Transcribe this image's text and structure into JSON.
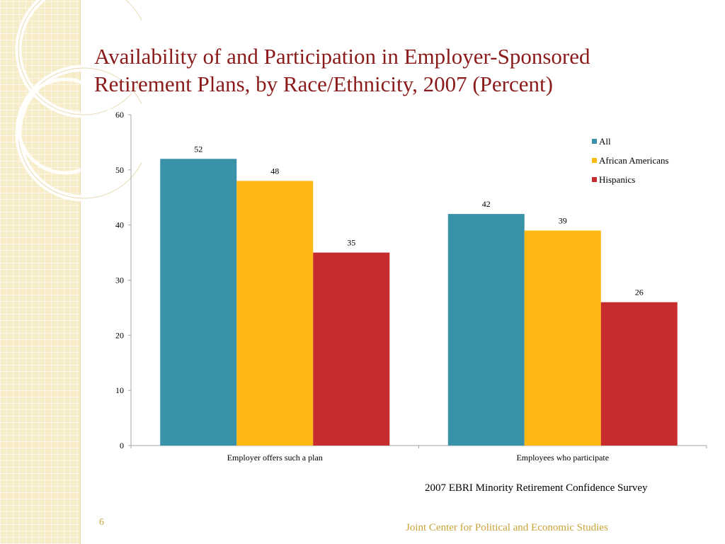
{
  "slide": {
    "title_line1": "Availability of and Participation in Employer-Sponsored",
    "title_line2": "Retirement Plans, by Race/Ethnicity, 2007 (Percent)",
    "source_note": "2007 EBRI Minority Retirement Confidence Survey",
    "page_number": "6",
    "footer": "Joint Center for Political and Economic Studies"
  },
  "colors": {
    "title": "#8b1a1a",
    "footer": "#c9a43a",
    "all": "#3a92a8",
    "african_americans": "#fdb813",
    "hispanics": "#c62b2e"
  },
  "chart_data": {
    "type": "bar",
    "categories": [
      "Employer offers such a plan",
      "Employees who participate"
    ],
    "series": [
      {
        "name": "All",
        "values": [
          52,
          42
        ],
        "color": "#3a92a8"
      },
      {
        "name": "African Americans",
        "values": [
          48,
          39
        ],
        "color": "#fdb813"
      },
      {
        "name": "Hispanics",
        "values": [
          35,
          26
        ],
        "color": "#c62b2e"
      }
    ],
    "ylim": [
      0,
      60
    ],
    "yticks": [
      0,
      10,
      20,
      30,
      40,
      50,
      60
    ],
    "legend_position": "top-right",
    "grid": false
  }
}
